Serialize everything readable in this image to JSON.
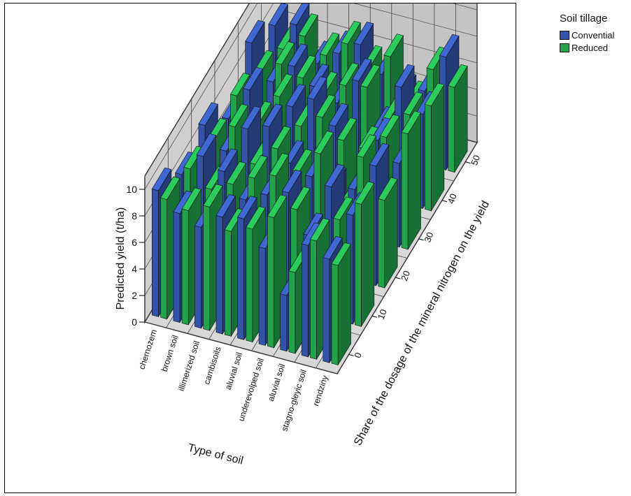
{
  "chart_data": {
    "type": "bar",
    "subtype": "3d-bar",
    "zlabel": "Predicted yield (t/ha)",
    "xlabel": "Type of soil",
    "ylabel": "Share of the dosage of the mineral nitrogen on the yield",
    "zlim": [
      0,
      10
    ],
    "z_ticks": [
      "0",
      "2",
      "4",
      "6",
      "8",
      "10"
    ],
    "y_ticks": [
      "0",
      "10",
      "20",
      "30",
      "40",
      "50"
    ],
    "categories": [
      "chernozem",
      "brown soil",
      "illimerized soil",
      "cambisoils",
      "aluvial soil",
      "underevolped soil",
      "aluvial soil",
      "stagno-gleyic soil",
      "rendziny"
    ],
    "legend_title": "Soil tillage",
    "legend_position": "top-right",
    "grid": true,
    "series": [
      {
        "name": "Convential",
        "color": "#3253a8",
        "values": [
          [
            9.5,
            7.8,
            8.6,
            6.2,
            9.0,
            7.4
          ],
          [
            8.2,
            9.6,
            7.1,
            8.8,
            6.5,
            7.9
          ],
          [
            7.6,
            8.9,
            9.2,
            6.8,
            8.1,
            5.4
          ],
          [
            8.8,
            7.2,
            9.8,
            8.4,
            7.0,
            6.6
          ],
          [
            9.1,
            8.0,
            7.5,
            9.4,
            6.2,
            7.7
          ],
          [
            7.3,
            8.6,
            6.9,
            7.8,
            8.3,
            5.9
          ],
          [
            4.2,
            5.8,
            6.4,
            3.6,
            5.1,
            4.7
          ],
          [
            8.4,
            9.9,
            6.8,
            7.6,
            8.7,
            5.5
          ],
          [
            7.8,
            8.2,
            9.0,
            6.3,
            7.1,
            8.5
          ]
        ]
      },
      {
        "name": "Reduced",
        "color": "#22a24a",
        "values": [
          [
            9.0,
            8.4,
            7.6,
            8.1,
            6.9,
            5.8
          ],
          [
            8.6,
            7.3,
            9.1,
            6.4,
            8.0,
            7.2
          ],
          [
            9.3,
            8.1,
            6.7,
            8.9,
            7.4,
            6.2
          ],
          [
            7.9,
            9.0,
            8.3,
            7.1,
            6.6,
            7.5
          ],
          [
            8.5,
            9.6,
            7.0,
            8.2,
            7.7,
            6.1
          ],
          [
            9.8,
            7.5,
            8.8,
            6.9,
            8.0,
            7.4
          ],
          [
            6.1,
            5.4,
            4.8,
            6.7,
            5.9,
            4.3
          ],
          [
            8.9,
            7.6,
            9.4,
            8.0,
            6.8,
            7.3
          ],
          [
            7.5,
            9.2,
            6.6,
            8.7,
            7.9,
            6.4
          ]
        ]
      }
    ]
  }
}
